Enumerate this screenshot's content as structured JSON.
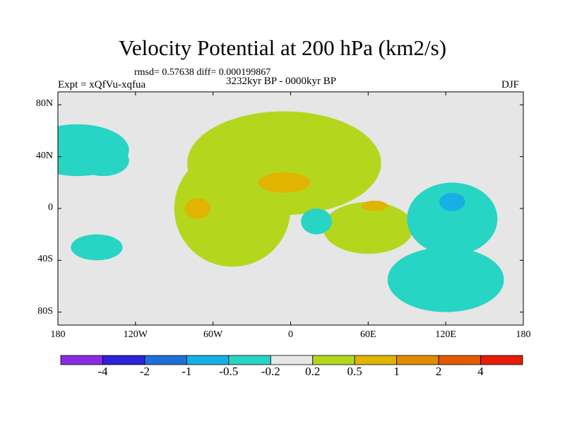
{
  "chart_data": {
    "type": "heatmap",
    "title": "Velocity Potential at 200 hPa (km2/s)",
    "stats_label": "rmsd= 0.57638 diff= 0.000199867",
    "experiment_label": "Expt = xQfVu-xqfua",
    "period_label": "3232kyr BP - 0000kyr BP",
    "season_label": "DJF",
    "projection": "cylindrical equidistant",
    "lon_range": [
      -180,
      180
    ],
    "lat_range": [
      -90,
      90
    ],
    "y_ticks": [
      {
        "value": 80,
        "label": "80N"
      },
      {
        "value": 40,
        "label": "40N"
      },
      {
        "value": 0,
        "label": "0"
      },
      {
        "value": -40,
        "label": "40S"
      },
      {
        "value": -80,
        "label": "80S"
      }
    ],
    "x_ticks": [
      {
        "value": -180,
        "label": "180"
      },
      {
        "value": -120,
        "label": "120W"
      },
      {
        "value": -60,
        "label": "60W"
      },
      {
        "value": 0,
        "label": "0"
      },
      {
        "value": 60,
        "label": "60E"
      },
      {
        "value": 120,
        "label": "120E"
      },
      {
        "value": 180,
        "label": "180"
      }
    ],
    "color_levels": [
      {
        "label": "-4",
        "value": -4
      },
      {
        "label": "-2",
        "value": -2
      },
      {
        "label": "-1",
        "value": -1
      },
      {
        "label": "-0.5",
        "value": -0.5
      },
      {
        "label": "-0.2",
        "value": -0.2
      },
      {
        "label": "0.2",
        "value": 0.2
      },
      {
        "label": "0.5",
        "value": 0.5
      },
      {
        "label": "1",
        "value": 1
      },
      {
        "label": "2",
        "value": 2
      },
      {
        "label": "4",
        "value": 4
      }
    ],
    "color_bins": [
      "#8a2be2",
      "#2e22d6",
      "#1f6fd8",
      "#18b0e4",
      "#28d4c4",
      "#e6e6e6",
      "#b4d71e",
      "#e0b400",
      "#e08a00",
      "#e05a00",
      "#e51c0a"
    ],
    "anomaly_blobs": [
      {
        "lon": -5,
        "lat": 35,
        "rlon": 75,
        "rlat": 40,
        "value": 0.3
      },
      {
        "lon": -45,
        "lat": 0,
        "rlon": 45,
        "rlat": 45,
        "value": 0.3
      },
      {
        "lon": 60,
        "lat": -15,
        "rlon": 35,
        "rlat": 20,
        "value": 0.25
      },
      {
        "lon": -20,
        "lat": 30,
        "rlon": 55,
        "rlat": 30,
        "value": 0.35
      },
      {
        "lon": -40,
        "lat": 0,
        "rlon": 30,
        "rlat": 30,
        "value": 0.35
      },
      {
        "lon": -5,
        "lat": 20,
        "rlon": 20,
        "rlat": 8,
        "value": 0.5
      },
      {
        "lon": -72,
        "lat": 0,
        "rlon": 10,
        "rlat": 8,
        "value": 0.8
      },
      {
        "lon": 65,
        "lat": 2,
        "rlon": 10,
        "rlat": 4,
        "value": 0.5
      },
      {
        "lon": -165,
        "lat": 45,
        "rlon": 40,
        "rlat": 20,
        "value": -0.45
      },
      {
        "lon": -145,
        "lat": 37,
        "rlon": 20,
        "rlat": 12,
        "value": -0.35
      },
      {
        "lon": 125,
        "lat": -8,
        "rlon": 35,
        "rlat": 28,
        "value": -0.45
      },
      {
        "lon": 120,
        "lat": -55,
        "rlon": 45,
        "rlat": 25,
        "value": -0.25
      },
      {
        "lon": 125,
        "lat": 5,
        "rlon": 10,
        "rlat": 7,
        "value": -1.0
      },
      {
        "lon": 20,
        "lat": -10,
        "rlon": 12,
        "rlat": 10,
        "value": -0.35
      },
      {
        "lon": -150,
        "lat": -30,
        "rlon": 20,
        "rlat": 10,
        "value": -0.3
      }
    ]
  }
}
